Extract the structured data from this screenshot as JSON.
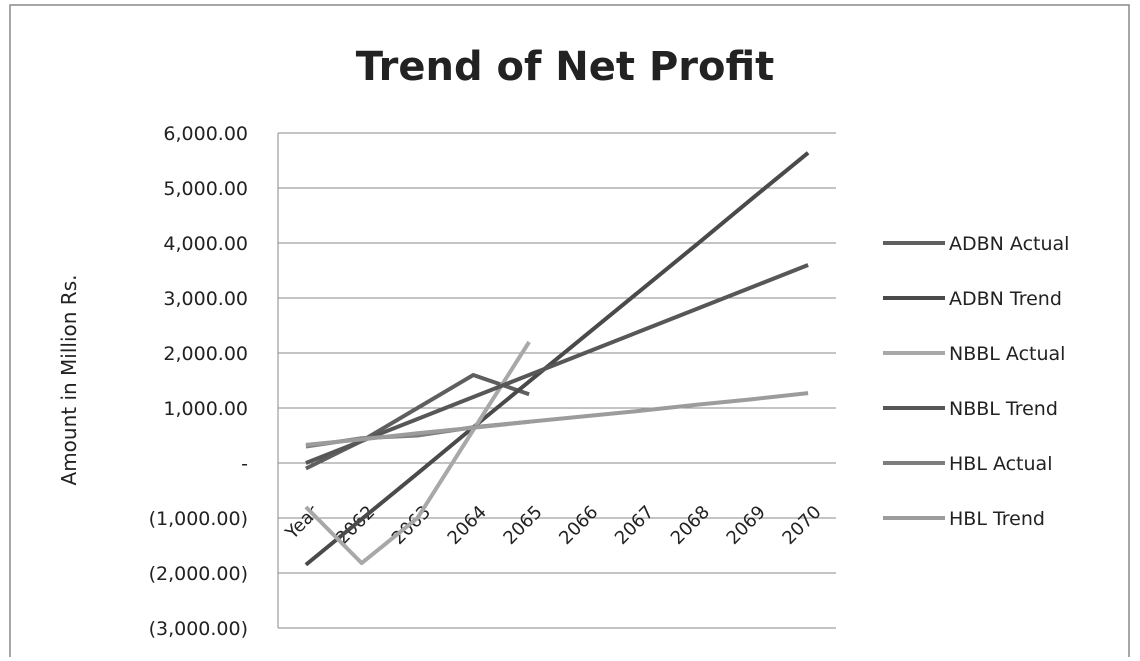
{
  "chart_data": {
    "type": "line",
    "title": "Trend of Net Profit",
    "y_axis_label": "Amount in Million Rs.",
    "categories": [
      "Year",
      "2062",
      "2063",
      "2064",
      "2065",
      "2066",
      "2067",
      "2068",
      "2069",
      "2070"
    ],
    "series": [
      {
        "name": "ADBN Actual",
        "color": "#5f5f5f",
        "values": [
          -100,
          400,
          1000,
          1600,
          1250,
          null,
          null,
          null,
          null,
          null
        ]
      },
      {
        "name": "ADBN Trend",
        "color": "#4a4a4a",
        "values": [
          -1850,
          -1020,
          -190,
          650,
          1480,
          2310,
          3140,
          3970,
          4810,
          5640
        ]
      },
      {
        "name": "NBBL Actual",
        "color": "#a8a8a8",
        "values": [
          -800,
          -1820,
          -1000,
          600,
          2200,
          null,
          null,
          null,
          null,
          null
        ]
      },
      {
        "name": "NBBL Trend",
        "color": "#575757",
        "values": [
          0,
          400,
          800,
          1200,
          1600,
          2000,
          2400,
          2800,
          3200,
          3600
        ]
      },
      {
        "name": "HBL Actual",
        "color": "#7d7d7d",
        "values": [
          300,
          450,
          500,
          650,
          750,
          null,
          null,
          null,
          null,
          null
        ]
      },
      {
        "name": "HBL Trend",
        "color": "#9c9c9c",
        "values": [
          330,
          430,
          540,
          640,
          750,
          850,
          950,
          1060,
          1160,
          1270
        ]
      }
    ],
    "ylim": [
      -3000,
      6000
    ],
    "yticks": [
      {
        "value": -3000,
        "label": "(3,000.00)"
      },
      {
        "value": -2000,
        "label": "(2,000.00)"
      },
      {
        "value": -1000,
        "label": "(1,000.00)"
      },
      {
        "value": 0,
        "label": "-"
      },
      {
        "value": 1000,
        "label": "1,000.00"
      },
      {
        "value": 2000,
        "label": "2,000.00"
      },
      {
        "value": 3000,
        "label": "3,000.00"
      },
      {
        "value": 4000,
        "label": "4,000.00"
      },
      {
        "value": 5000,
        "label": "5,000.00"
      },
      {
        "value": 6000,
        "label": "6,000.00"
      }
    ],
    "grid": true,
    "legend": "right"
  }
}
